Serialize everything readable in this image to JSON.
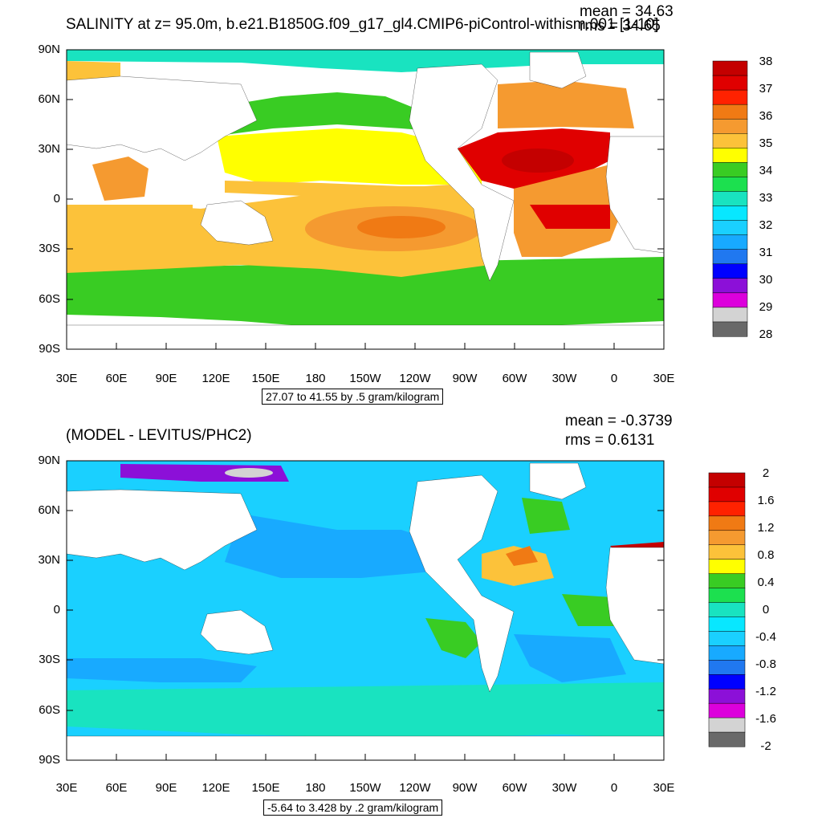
{
  "panels": [
    {
      "title": "SALINITY at z=  95.0m, b.e21.B1850G.f09_g17_gl4.CMIP6-piControl-withism.001 [1-10]",
      "mean_text": "mean = 34.63",
      "rms_text": "rms = 34.65",
      "range_text": "27.07 to 41.55 by .5 gram/kilogram",
      "y_ticks": [
        "90N",
        "60N",
        "30N",
        "0",
        "30S",
        "60S",
        "90S"
      ],
      "x_ticks": [
        "30E",
        "60E",
        "90E",
        "120E",
        "150E",
        "180",
        "150W",
        "120W",
        "90W",
        "60W",
        "30W",
        "0",
        "30E"
      ],
      "colorbar": {
        "labels": [
          "38",
          "37",
          "36",
          "35",
          "34",
          "33",
          "32",
          "31",
          "30",
          "29",
          "28"
        ],
        "colors": [
          "#c40000",
          "#e00000",
          "#ff2200",
          "#f07a14",
          "#f59a30",
          "#fcc23a",
          "#ffff00",
          "#39cc23",
          "#1ce04f",
          "#19e3c0",
          "#08e7ff",
          "#1ad0ff",
          "#18aaff",
          "#2078f0",
          "#0000ff",
          "#8c10d8",
          "#dc00dc",
          "#d3d3d3",
          "#696969"
        ]
      }
    },
    {
      "title": "(MODEL - LEVITUS/PHC2)",
      "mean_text": "mean = -0.3739",
      "rms_text": "rms = 0.6131",
      "range_text": "-5.64 to 3.428 by .2 gram/kilogram",
      "y_ticks": [
        "90N",
        "60N",
        "30N",
        "0",
        "30S",
        "60S",
        "90S"
      ],
      "x_ticks": [
        "30E",
        "60E",
        "90E",
        "120E",
        "150E",
        "180",
        "150W",
        "120W",
        "90W",
        "60W",
        "30W",
        "0",
        "30E"
      ],
      "colorbar": {
        "labels": [
          "2",
          "1.6",
          "1.2",
          "0.8",
          "0.4",
          "0",
          "-0.4",
          "-0.8",
          "-1.2",
          "-1.6",
          "-2"
        ],
        "colors": [
          "#c40000",
          "#e00000",
          "#ff2200",
          "#f07a14",
          "#f59a30",
          "#fcc23a",
          "#ffff00",
          "#39cc23",
          "#1ce04f",
          "#19e3c0",
          "#08e7ff",
          "#1ad0ff",
          "#18aaff",
          "#2078f0",
          "#0000ff",
          "#8c10d8",
          "#dc00dc",
          "#d3d3d3",
          "#696969"
        ]
      }
    }
  ]
}
